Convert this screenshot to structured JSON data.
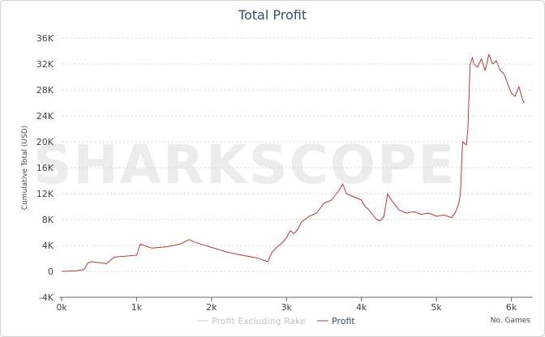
{
  "chart_data": {
    "type": "line",
    "title": "Total Profit",
    "watermark": "SHARKSCOPE",
    "ylabel": "Cumulative Total (USD)",
    "x_axis_corner_label": "No. Games",
    "xlim": [
      0,
      6200
    ],
    "ylim": [
      -4000,
      36000
    ],
    "x_ticks": [
      {
        "value": 0,
        "label": "0k"
      },
      {
        "value": 1000,
        "label": "1k"
      },
      {
        "value": 2000,
        "label": "2k"
      },
      {
        "value": 3000,
        "label": "3k"
      },
      {
        "value": 4000,
        "label": "4k"
      },
      {
        "value": 5000,
        "label": "5k"
      },
      {
        "value": 6000,
        "label": "6k"
      }
    ],
    "y_ticks": [
      {
        "value": -4000,
        "label": "-4K"
      },
      {
        "value": 0,
        "label": "0"
      },
      {
        "value": 4000,
        "label": "4K"
      },
      {
        "value": 8000,
        "label": "8K"
      },
      {
        "value": 12000,
        "label": "12K"
      },
      {
        "value": 16000,
        "label": "16K"
      },
      {
        "value": 20000,
        "label": "20K"
      },
      {
        "value": 24000,
        "label": "24K"
      },
      {
        "value": 28000,
        "label": "28K"
      },
      {
        "value": 32000,
        "label": "32K"
      },
      {
        "value": 36000,
        "label": "36K"
      }
    ],
    "grid": true,
    "legend_position": "bottom",
    "series": [
      {
        "name": "Profit Excluding Rake",
        "color": "#cccccc",
        "visible": false,
        "x": [],
        "y": []
      },
      {
        "name": "Profit",
        "color": "#b03a3a",
        "visible": true,
        "x": [
          0,
          200,
          300,
          350,
          400,
          600,
          700,
          800,
          1000,
          1050,
          1200,
          1400,
          1500,
          1600,
          1700,
          1800,
          2000,
          2200,
          2400,
          2600,
          2750,
          2800,
          2850,
          2950,
          3000,
          3050,
          3100,
          3150,
          3200,
          3300,
          3400,
          3500,
          3600,
          3700,
          3750,
          3800,
          3900,
          4000,
          4050,
          4100,
          4200,
          4250,
          4300,
          4350,
          4400,
          4500,
          4600,
          4700,
          4800,
          4900,
          5000,
          5100,
          5200,
          5250,
          5300,
          5320,
          5350,
          5400,
          5420,
          5450,
          5480,
          5500,
          5550,
          5600,
          5650,
          5700,
          5750,
          5800,
          5850,
          5900,
          5950,
          6000,
          6050,
          6100,
          6150,
          6170
        ],
        "y": [
          0,
          100,
          300,
          1300,
          1500,
          1200,
          2200,
          2300,
          2500,
          4200,
          3600,
          3800,
          4000,
          4300,
          4900,
          4400,
          3700,
          3000,
          2500,
          2100,
          1500,
          2800,
          3500,
          4500,
          5200,
          6300,
          5800,
          6500,
          7600,
          8500,
          9000,
          10500,
          11000,
          12500,
          13500,
          12000,
          11500,
          11000,
          10000,
          9500,
          8000,
          7800,
          8500,
          12000,
          11000,
          9500,
          9000,
          9200,
          8800,
          9000,
          8500,
          8700,
          8300,
          9000,
          10500,
          12000,
          20000,
          19500,
          22000,
          32000,
          33000,
          32000,
          31500,
          32800,
          31000,
          33500,
          32000,
          32500,
          31000,
          30500,
          29000,
          27500,
          27000,
          28500,
          26500,
          26000
        ]
      }
    ]
  }
}
